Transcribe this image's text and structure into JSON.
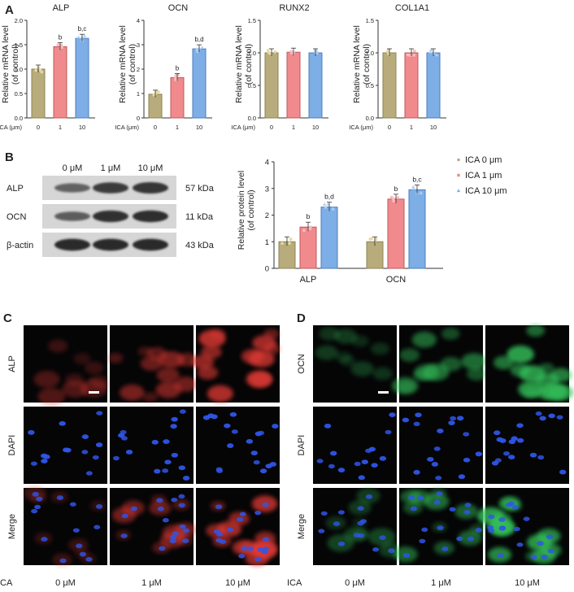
{
  "figure": {
    "panels": {
      "A": "A",
      "B": "B",
      "C": "C",
      "D": "D"
    },
    "colors": {
      "ica_0": "#b8ac7c",
      "ica_1": "#f08a8d",
      "ica_10": "#7eaee6",
      "red_stain": "#e23a34",
      "green_stain": "#35c45c",
      "blue_stain": "#2f55e8"
    },
    "ica_axis_label": "ICA (μm)",
    "ica_axis_values": [
      "0",
      "1",
      "10"
    ]
  },
  "chart_data": [
    {
      "type": "bar",
      "title": "ALP",
      "ylabel": "Relative mRNA level\n(of control)",
      "xlabel": "ICA (μm)",
      "categories": [
        "0",
        "1",
        "10"
      ],
      "values": [
        1.0,
        1.46,
        1.63
      ],
      "ylim": [
        0,
        2.0
      ],
      "yticks": [
        "0.0",
        "0.5",
        "1.0",
        "1.5",
        "2.0"
      ],
      "annotations": [
        "",
        "b",
        "b,c"
      ]
    },
    {
      "type": "bar",
      "title": "OCN",
      "ylabel": "Relative mRNA level\n(of control)",
      "xlabel": "ICA (μm)",
      "categories": [
        "0",
        "1",
        "10"
      ],
      "values": [
        0.97,
        1.65,
        2.83
      ],
      "ylim": [
        0,
        4
      ],
      "yticks": [
        "0",
        "1",
        "2",
        "3",
        "4"
      ],
      "annotations": [
        "",
        "b",
        "b,d"
      ]
    },
    {
      "type": "bar",
      "title": "RUNX2",
      "ylabel": "Relative mRNA level\n(of control)",
      "xlabel": "ICA (μm)",
      "categories": [
        "0",
        "1",
        "10"
      ],
      "values": [
        1.0,
        1.01,
        1.0
      ],
      "ylim": [
        0,
        1.5
      ],
      "yticks": [
        "0.0",
        "0.5",
        "1.0",
        "1.5"
      ],
      "annotations": [
        "",
        "",
        ""
      ]
    },
    {
      "type": "bar",
      "title": "COL1A1",
      "ylabel": "Relative mRNA level\n(of control)",
      "xlabel": "ICA (μm)",
      "categories": [
        "0",
        "1",
        "10"
      ],
      "values": [
        1.0,
        1.0,
        1.0
      ],
      "ylim": [
        0,
        1.5
      ],
      "yticks": [
        "0.0",
        "0.5",
        "1.0",
        "1.5"
      ],
      "annotations": [
        "",
        "",
        ""
      ]
    },
    {
      "type": "bar",
      "title": "",
      "ylabel": "Relative protein level\n(of control)",
      "xlabel": "",
      "categories": [
        "ALP",
        "OCN"
      ],
      "ylim": [
        0,
        4
      ],
      "yticks": [
        "0",
        "1",
        "2",
        "3",
        "4"
      ],
      "series": [
        {
          "name": "ICA 0 μm",
          "values": [
            1.0,
            1.0
          ]
        },
        {
          "name": "ICA 1 μm",
          "values": [
            1.55,
            2.6
          ]
        },
        {
          "name": "ICA 10 μm",
          "values": [
            2.3,
            2.95
          ]
        }
      ],
      "annotations": [
        [
          "",
          "b",
          "b,d"
        ],
        [
          "",
          "b",
          "b,c"
        ]
      ],
      "legend": "right"
    }
  ],
  "western_blot": {
    "lanes": [
      "0 μM",
      "1 μM",
      "10 μM"
    ],
    "rows": [
      {
        "label": "ALP",
        "kda": "57 kDa",
        "intensity": [
          0.45,
          0.8,
          0.85
        ]
      },
      {
        "label": "OCN",
        "kda": "11 kDa",
        "intensity": [
          0.5,
          0.9,
          0.92
        ]
      },
      {
        "label": "β-actin",
        "kda": "43 kDa",
        "intensity": [
          0.95,
          0.95,
          0.95
        ]
      }
    ]
  },
  "micrographs": {
    "C": {
      "rows": [
        "ALP",
        "DAPI",
        "Merge"
      ],
      "columns": [
        "0 μM",
        "1 μM",
        "10 μM"
      ],
      "ica_label": "ICA"
    },
    "D": {
      "rows": [
        "OCN",
        "DAPI",
        "Merge"
      ],
      "columns": [
        "0 μM",
        "1 μM",
        "10 μM"
      ],
      "ica_label": "ICA"
    }
  }
}
